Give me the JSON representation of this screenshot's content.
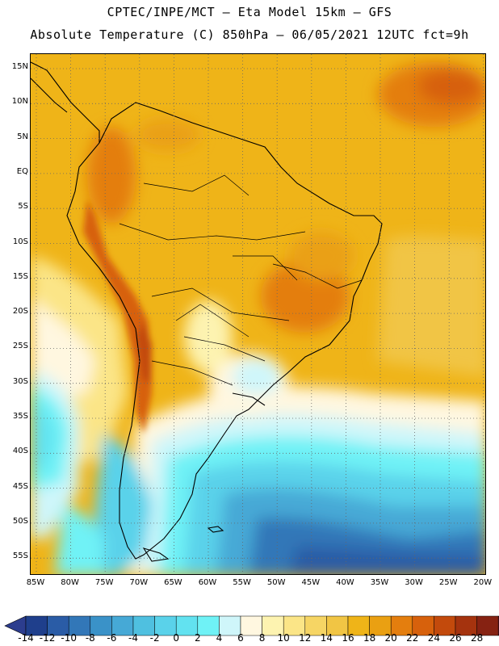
{
  "header": {
    "title_line1": "CPTEC/INPE/MCT —  Eta Model 15km — GFS",
    "title_line2": "Absolute Temperature (C) 850hPa — 06/05/2021 12UTC fct=9h"
  },
  "map": {
    "lat_labels": [
      "15N",
      "10N",
      "5N",
      "EQ",
      "5S",
      "10S",
      "15S",
      "20S",
      "25S",
      "30S",
      "35S",
      "40S",
      "45S",
      "50S",
      "55S"
    ],
    "lon_labels": [
      "85W",
      "80W",
      "75W",
      "70W",
      "65W",
      "60W",
      "55W",
      "50W",
      "45W",
      "40W",
      "35W",
      "30W",
      "25W",
      "20W"
    ]
  },
  "colorbar": {
    "labels": [
      "-14",
      "-12",
      "-10",
      "-8",
      "-6",
      "-4",
      "-2",
      "0",
      "2",
      "4",
      "6",
      "8",
      "10",
      "12",
      "14",
      "16",
      "18",
      "20",
      "22",
      "24",
      "26",
      "28"
    ],
    "colors": [
      "#1f3f8c",
      "#2a5ca6",
      "#3277b8",
      "#3a92c8",
      "#46a9d6",
      "#4fc0e0",
      "#5ad2ea",
      "#62e2f0",
      "#6ff2f6",
      "#cff6fa",
      "#fff7e0",
      "#fdf3b0",
      "#fbe587",
      "#f6d564",
      "#f1c544",
      "#efb418",
      "#eaa012",
      "#e47e0e",
      "#d7610c",
      "#c34a0c",
      "#a5330e",
      "#862212"
    ],
    "left_cap_color": "#2c3d8e",
    "right_cap_color": "#7a1a2c"
  },
  "colors": {
    "ocean_cold": "#2a5ca6",
    "ocean_cool": "#5ad2ea",
    "land_warm": "#efb418",
    "highlands": "#d7610c",
    "coast_line": "#000000"
  }
}
